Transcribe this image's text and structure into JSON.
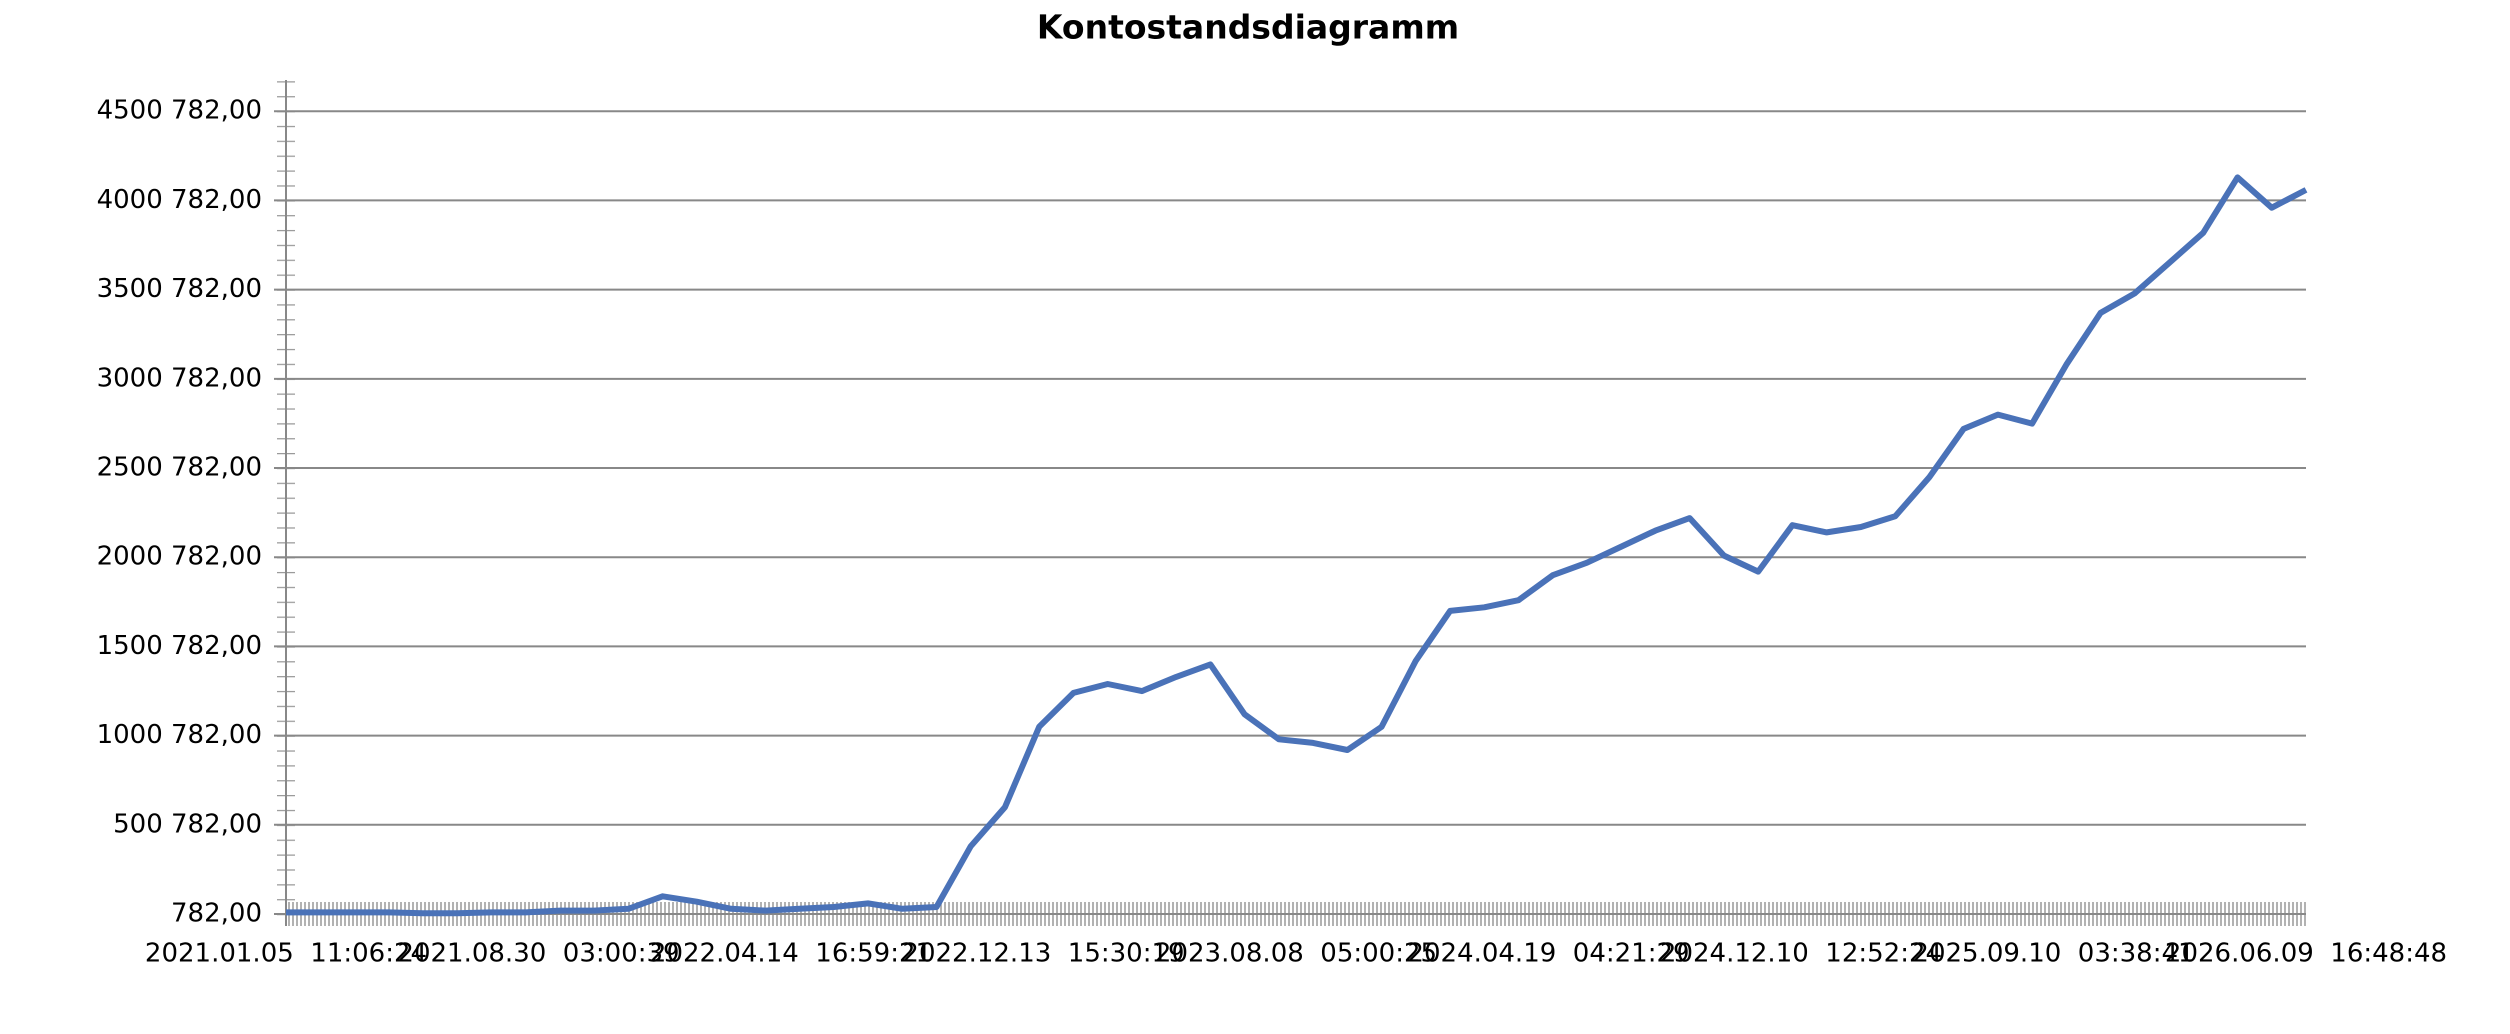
{
  "chart_data": {
    "type": "line",
    "title": "Kontostandsdiagramm",
    "xticks": [
      "2021.01.05  11:06:24",
      "2021.08.30  03:00:39",
      "2022.04.14  16:59:21",
      "2022.12.13  15:30:19",
      "2023.08.08  05:00:25",
      "2024.04.19  04:21:29",
      "2024.12.10  12:52:24",
      "2025.09.10  03:38:41",
      "2026.06.09  16:48:48"
    ],
    "ylim": [
      782,
      4675782
    ],
    "yticks": [
      {
        "value": 782,
        "label": "782,00"
      },
      {
        "value": 500782,
        "label": "500 782,00"
      },
      {
        "value": 1000782,
        "label": "1000 782,00"
      },
      {
        "value": 1500782,
        "label": "1500 782,00"
      },
      {
        "value": 2000782,
        "label": "2000 782,00"
      },
      {
        "value": 2500782,
        "label": "2500 782,00"
      },
      {
        "value": 3000782,
        "label": "3000 782,00"
      },
      {
        "value": 3500782,
        "label": "3500 782,00"
      },
      {
        "value": 4000782,
        "label": "4000 782,00"
      },
      {
        "value": 4500782,
        "label": "4500 782,00"
      }
    ],
    "grid": true,
    "color": "#4a72b8",
    "values": [
      10000,
      10000,
      10000,
      10000,
      5000,
      5000,
      10000,
      10000,
      20000,
      20000,
      30000,
      100000,
      70000,
      30000,
      20000,
      30000,
      40000,
      60000,
      30000,
      40000,
      380000,
      600000,
      1050000,
      1240000,
      1290000,
      1250000,
      1330000,
      1400000,
      1120000,
      980000,
      960000,
      920000,
      1050000,
      1420000,
      1700000,
      1720000,
      1760000,
      1900000,
      1970000,
      2060000,
      2150000,
      2220000,
      2010000,
      1920000,
      2180000,
      2140000,
      2170000,
      2230000,
      2450000,
      2720000,
      2800000,
      2750000,
      3080000,
      3370000,
      3480000,
      3650000,
      3820000,
      4130000,
      3960000,
      4060000
    ]
  }
}
